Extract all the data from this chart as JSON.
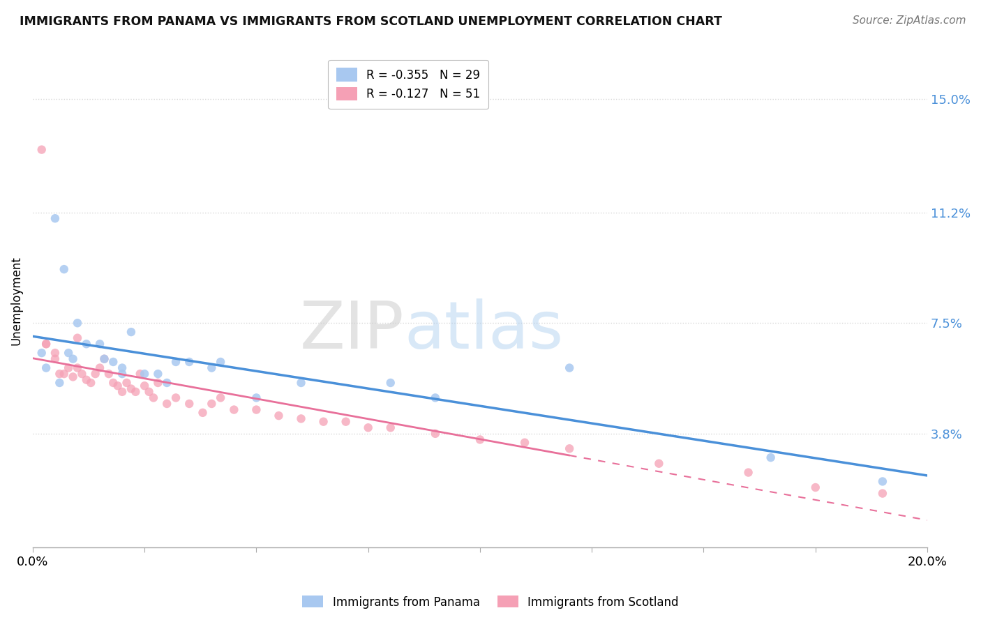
{
  "title": "IMMIGRANTS FROM PANAMA VS IMMIGRANTS FROM SCOTLAND UNEMPLOYMENT CORRELATION CHART",
  "source": "Source: ZipAtlas.com",
  "ylabel": "Unemployment",
  "xlim": [
    0.0,
    0.2
  ],
  "ylim": [
    0.0,
    0.165
  ],
  "yticks": [
    0.038,
    0.075,
    0.112,
    0.15
  ],
  "ytick_labels": [
    "3.8%",
    "7.5%",
    "11.2%",
    "15.0%"
  ],
  "xticks": [
    0.0,
    0.025,
    0.05,
    0.075,
    0.1,
    0.125,
    0.15,
    0.175,
    0.2
  ],
  "xtick_labels_show": [
    "0.0%",
    "",
    "",
    "",
    "",
    "",
    "",
    "",
    "20.0%"
  ],
  "legend_labels": [
    "Immigrants from Panama",
    "Immigrants from Scotland"
  ],
  "legend_R": [
    -0.355,
    -0.127
  ],
  "legend_N": [
    29,
    51
  ],
  "panama_color": "#a8c8f0",
  "scotland_color": "#f5a0b5",
  "panama_line_color": "#4a90d9",
  "scotland_line_color": "#e8709a",
  "background_color": "#ffffff",
  "grid_color": "#d8d8d8",
  "panama_x": [
    0.002,
    0.005,
    0.007,
    0.008,
    0.01,
    0.012,
    0.015,
    0.016,
    0.018,
    0.02,
    0.022,
    0.025,
    0.028,
    0.03,
    0.032,
    0.035,
    0.04,
    0.042,
    0.05,
    0.06,
    0.08,
    0.09,
    0.12,
    0.165,
    0.19,
    0.003,
    0.006,
    0.009,
    0.02
  ],
  "panama_y": [
    0.065,
    0.11,
    0.093,
    0.065,
    0.075,
    0.068,
    0.068,
    0.063,
    0.062,
    0.06,
    0.072,
    0.058,
    0.058,
    0.055,
    0.062,
    0.062,
    0.06,
    0.062,
    0.05,
    0.055,
    0.055,
    0.05,
    0.06,
    0.03,
    0.022,
    0.06,
    0.055,
    0.063,
    0.058
  ],
  "scotland_x": [
    0.002,
    0.003,
    0.005,
    0.006,
    0.007,
    0.008,
    0.009,
    0.01,
    0.011,
    0.012,
    0.013,
    0.014,
    0.015,
    0.016,
    0.017,
    0.018,
    0.019,
    0.02,
    0.021,
    0.022,
    0.023,
    0.024,
    0.025,
    0.026,
    0.027,
    0.028,
    0.03,
    0.032,
    0.035,
    0.038,
    0.04,
    0.042,
    0.045,
    0.05,
    0.055,
    0.06,
    0.065,
    0.07,
    0.075,
    0.08,
    0.09,
    0.1,
    0.11,
    0.12,
    0.14,
    0.16,
    0.175,
    0.19,
    0.003,
    0.005,
    0.01
  ],
  "scotland_y": [
    0.133,
    0.068,
    0.063,
    0.058,
    0.058,
    0.06,
    0.057,
    0.06,
    0.058,
    0.056,
    0.055,
    0.058,
    0.06,
    0.063,
    0.058,
    0.055,
    0.054,
    0.052,
    0.055,
    0.053,
    0.052,
    0.058,
    0.054,
    0.052,
    0.05,
    0.055,
    0.048,
    0.05,
    0.048,
    0.045,
    0.048,
    0.05,
    0.046,
    0.046,
    0.044,
    0.043,
    0.042,
    0.042,
    0.04,
    0.04,
    0.038,
    0.036,
    0.035,
    0.033,
    0.028,
    0.025,
    0.02,
    0.018,
    0.068,
    0.065,
    0.07
  ]
}
